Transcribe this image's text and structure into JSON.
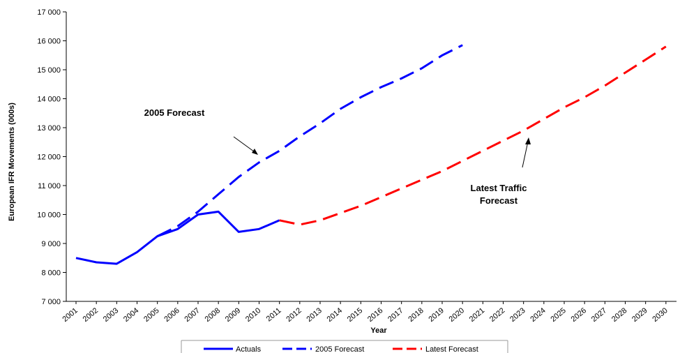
{
  "chart_data": {
    "type": "line",
    "xlabel": "Year",
    "ylabel": "European IFR Movements (000s)",
    "ylim": [
      7000,
      17000
    ],
    "yticks": [
      7000,
      8000,
      9000,
      10000,
      11000,
      12000,
      13000,
      14000,
      15000,
      16000,
      17000
    ],
    "ytick_labels": [
      "7 000",
      "8 000",
      "9 000",
      "10 000",
      "11 000",
      "12 000",
      "13 000",
      "14 000",
      "15 000",
      "16 000",
      "17 000"
    ],
    "categories": [
      "2001",
      "2002",
      "2003",
      "2004",
      "2005",
      "2006",
      "2007",
      "2008",
      "2009",
      "2010",
      "2011",
      "2012",
      "2013",
      "2014",
      "2015",
      "2016",
      "2017",
      "2018",
      "2019",
      "2020",
      "2021",
      "2022",
      "2023",
      "2024",
      "2025",
      "2026",
      "2027",
      "2028",
      "2029",
      "2030"
    ],
    "grid": false,
    "legend_placement": "bottom",
    "series": [
      {
        "name": "Actuals",
        "color": "#0000ff",
        "style": "solid",
        "points": [
          [
            2001,
            8500
          ],
          [
            2002,
            8350
          ],
          [
            2003,
            8300
          ],
          [
            2004,
            8700
          ],
          [
            2005,
            9250
          ],
          [
            2006,
            9500
          ],
          [
            2007,
            10000
          ],
          [
            2008,
            10100
          ],
          [
            2009,
            9400
          ],
          [
            2010,
            9500
          ],
          [
            2011,
            9800
          ]
        ]
      },
      {
        "name": "2005 Forecast",
        "color": "#0000ff",
        "style": "dashed",
        "points": [
          [
            2005,
            9250
          ],
          [
            2006,
            9600
          ],
          [
            2007,
            10100
          ],
          [
            2008,
            10700
          ],
          [
            2009,
            11300
          ],
          [
            2010,
            11800
          ],
          [
            2011,
            12200
          ],
          [
            2012,
            12700
          ],
          [
            2013,
            13150
          ],
          [
            2014,
            13650
          ],
          [
            2015,
            14050
          ],
          [
            2016,
            14400
          ],
          [
            2017,
            14700
          ],
          [
            2018,
            15050
          ],
          [
            2019,
            15500
          ],
          [
            2020,
            15850
          ]
        ]
      },
      {
        "name": "Latest Forecast",
        "color": "#ff0000",
        "style": "dashed",
        "points": [
          [
            2011,
            9800
          ],
          [
            2012,
            9650
          ],
          [
            2013,
            9800
          ],
          [
            2014,
            10050
          ],
          [
            2015,
            10300
          ],
          [
            2016,
            10600
          ],
          [
            2017,
            10900
          ],
          [
            2018,
            11200
          ],
          [
            2019,
            11500
          ],
          [
            2020,
            11850
          ],
          [
            2021,
            12200
          ],
          [
            2022,
            12550
          ],
          [
            2023,
            12900
          ],
          [
            2024,
            13300
          ],
          [
            2025,
            13700
          ],
          [
            2026,
            14050
          ],
          [
            2027,
            14450
          ],
          [
            2028,
            14900
          ],
          [
            2029,
            15350
          ],
          [
            2030,
            15800
          ]
        ]
      }
    ],
    "annotations": [
      {
        "text": "2005 Forecast",
        "arrow_to": [
          2010,
          12000
        ]
      },
      {
        "text": "Latest Traffic",
        "text2": "Forecast",
        "arrow_to": [
          2023,
          12700
        ]
      }
    ]
  }
}
